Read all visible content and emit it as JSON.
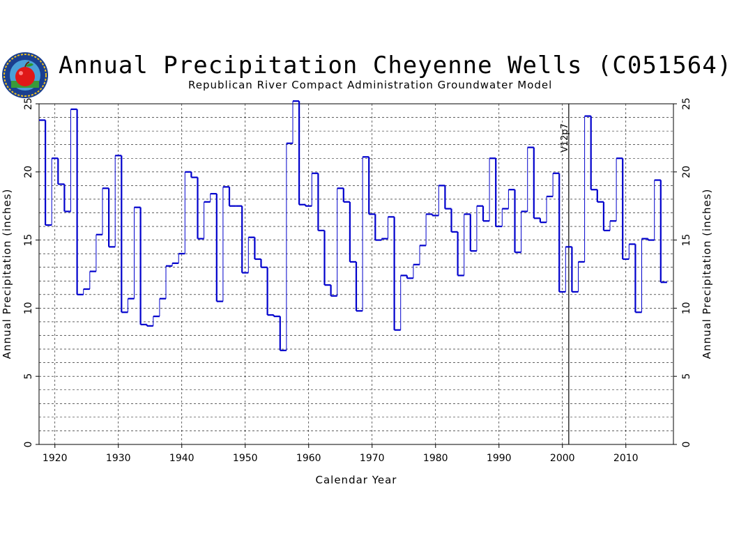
{
  "chart_data": {
    "type": "line",
    "title": "Annual Precipitation Cheyenne Wells (C051564)",
    "subtitle": "Republican River Compact Administration Groundwater Model",
    "xlabel": "Calendar Year",
    "ylabel": "Annual Precipitation (inches)",
    "xlim": [
      1917.5,
      2017.5
    ],
    "ylim": [
      0,
      25
    ],
    "x_ticks": [
      "1920",
      "1930",
      "1940",
      "1950",
      "1960",
      "1970",
      "1980",
      "1990",
      "2000",
      "2010"
    ],
    "y_ticks": [
      "0",
      "5",
      "10",
      "15",
      "20",
      "25"
    ],
    "grid": true,
    "annotation": "V12p7",
    "annotation_year": 2001,
    "series": [
      {
        "color": "#0000cc",
        "x": [
          1918,
          1919,
          1920,
          1921,
          1922,
          1923,
          1924,
          1925,
          1926,
          1927,
          1928,
          1929,
          1930,
          1931,
          1932,
          1933,
          1934,
          1935,
          1936,
          1937,
          1938,
          1939,
          1940,
          1941,
          1942,
          1943,
          1944,
          1945,
          1946,
          1947,
          1948,
          1949,
          1950,
          1951,
          1952,
          1953,
          1954,
          1955,
          1956,
          1957,
          1958,
          1959,
          1960,
          1961,
          1962,
          1963,
          1964,
          1965,
          1966,
          1967,
          1968,
          1969,
          1970,
          1971,
          1972,
          1973,
          1974,
          1975,
          1976,
          1977,
          1978,
          1979,
          1980,
          1981,
          1982,
          1983,
          1984,
          1985,
          1986,
          1987,
          1988,
          1989,
          1990,
          1991,
          1992,
          1993,
          1994,
          1995,
          1996,
          1997,
          1998,
          1999,
          2000,
          2001,
          2002,
          2003,
          2004,
          2005,
          2006,
          2007,
          2008,
          2009,
          2010,
          2011,
          2012,
          2013,
          2014,
          2015,
          2016
        ],
        "values": [
          23.8,
          16.1,
          21.0,
          19.1,
          17.1,
          24.6,
          11.0,
          11.4,
          12.7,
          15.4,
          18.8,
          14.5,
          21.2,
          9.7,
          10.7,
          17.4,
          8.8,
          8.7,
          9.4,
          10.7,
          13.1,
          13.3,
          14.0,
          20.0,
          19.6,
          15.1,
          17.8,
          18.4,
          10.5,
          18.9,
          17.5,
          17.5,
          12.6,
          15.2,
          13.6,
          13.0,
          9.5,
          9.4,
          6.9,
          22.1,
          25.2,
          17.6,
          17.5,
          19.9,
          15.7,
          11.7,
          10.9,
          18.8,
          17.8,
          13.4,
          9.8,
          21.1,
          16.9,
          15.0,
          15.1,
          16.7,
          8.4,
          12.4,
          12.2,
          13.2,
          14.6,
          16.9,
          16.8,
          19.0,
          17.3,
          15.6,
          12.4,
          16.9,
          14.2,
          17.5,
          16.4,
          21.0,
          16.0,
          17.3,
          18.7,
          14.1,
          17.1,
          21.8,
          16.6,
          16.3,
          18.2,
          19.9,
          11.2,
          14.5,
          11.2,
          13.4,
          24.1,
          18.7,
          17.8,
          15.7,
          16.4,
          21.0,
          13.6,
          14.7,
          9.7,
          15.1,
          15.0,
          19.4,
          11.9
        ]
      }
    ]
  }
}
